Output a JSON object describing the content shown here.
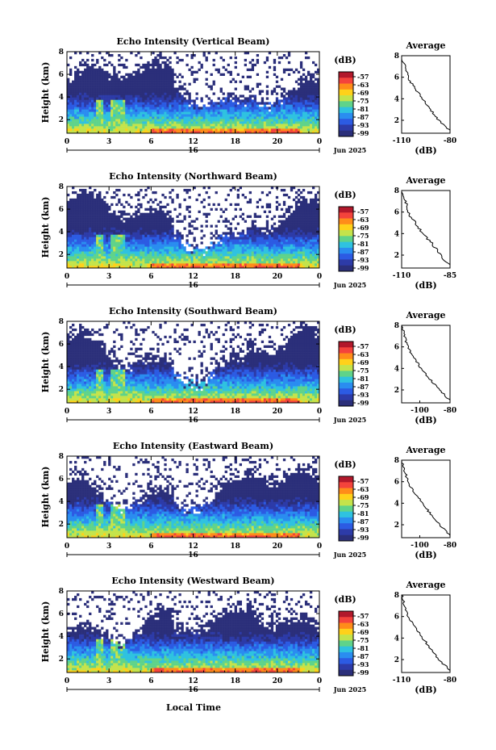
{
  "figure": {
    "xlabel": "Local Time",
    "day_label": "16",
    "month_label": "Jun 2025",
    "colorbar_unit": "(dB)",
    "colorbar_ticks": [
      "-57",
      "-63",
      "-69",
      "-75",
      "-81",
      "-87",
      "-93",
      "-99"
    ],
    "colorbar_colors": [
      "#b2182b",
      "#f4433c",
      "#ff8c1a",
      "#ffd11a",
      "#c4e34b",
      "#5fd38a",
      "#2fc2e0",
      "#2a8df0",
      "#2c5be3",
      "#2d3ba8",
      "#2b2f7a"
    ],
    "average_title": "Average",
    "average_xlabel": "(dB)"
  },
  "chart_data": [
    {
      "type": "heatmap",
      "title": "Echo Intensity (Vertical Beam)",
      "ylabel": "Height (km)",
      "x_ticks": [
        "0",
        "3",
        "6",
        "12",
        "18",
        "20",
        "0"
      ],
      "y_ticks": [
        "2",
        "4",
        "6",
        "8"
      ],
      "xlim_hours": [
        0,
        24
      ],
      "ylim_km": [
        0.8,
        8
      ],
      "color_range_db": [
        -99,
        -57
      ],
      "average_profile": {
        "x_ticks": [
          "-110",
          "-80"
        ],
        "y_ticks": [
          "2",
          "4",
          "6",
          "8"
        ],
        "xlim": [
          -110,
          -80
        ],
        "heights_km": [
          8,
          7,
          6,
          5,
          4,
          3,
          2,
          1
        ],
        "values_db": [
          -110,
          -108,
          -106,
          -102,
          -97,
          -92,
          -87,
          -80
        ]
      }
    },
    {
      "type": "heatmap",
      "title": "Echo Intensity (Northward Beam)",
      "ylabel": "Height (km)",
      "x_ticks": [
        "0",
        "3",
        "6",
        "12",
        "18",
        "20",
        "0"
      ],
      "y_ticks": [
        "2",
        "4",
        "6",
        "8"
      ],
      "xlim_hours": [
        0,
        24
      ],
      "ylim_km": [
        0.8,
        8
      ],
      "color_range_db": [
        -99,
        -57
      ],
      "average_profile": {
        "x_ticks": [
          "-110",
          "-85"
        ],
        "y_ticks": [
          "2",
          "4",
          "6",
          "8"
        ],
        "xlim": [
          -110,
          -85
        ],
        "heights_km": [
          8,
          7,
          6,
          5,
          4,
          3,
          2,
          1
        ],
        "values_db": [
          -110,
          -108,
          -107,
          -103,
          -99,
          -94,
          -90,
          -85
        ]
      }
    },
    {
      "type": "heatmap",
      "title": "Echo Intensity (Southward Beam)",
      "ylabel": "Height (km)",
      "x_ticks": [
        "0",
        "3",
        "6",
        "12",
        "18",
        "20",
        "0"
      ],
      "y_ticks": [
        "2",
        "4",
        "6",
        "8"
      ],
      "xlim_hours": [
        0,
        24
      ],
      "ylim_km": [
        0.8,
        8
      ],
      "color_range_db": [
        -99,
        -57
      ],
      "average_profile": {
        "x_ticks": [
          "-100",
          "-80"
        ],
        "y_ticks": [
          "2",
          "4",
          "6",
          "8"
        ],
        "xlim": [
          -112,
          -80
        ],
        "heights_km": [
          8,
          7,
          6,
          5,
          4,
          3,
          2,
          1
        ],
        "values_db": [
          -112,
          -110,
          -108,
          -104,
          -99,
          -93,
          -87,
          -80
        ]
      }
    },
    {
      "type": "heatmap",
      "title": "Echo Intensity (Eastward Beam)",
      "ylabel": "Height (km)",
      "x_ticks": [
        "0",
        "3",
        "6",
        "12",
        "18",
        "20",
        "0"
      ],
      "y_ticks": [
        "2",
        "4",
        "6",
        "8"
      ],
      "xlim_hours": [
        0,
        24
      ],
      "ylim_km": [
        0.8,
        8
      ],
      "color_range_db": [
        -99,
        -57
      ],
      "average_profile": {
        "x_ticks": [
          "-100",
          "-80"
        ],
        "y_ticks": [
          "2",
          "4",
          "6",
          "8"
        ],
        "xlim": [
          -112,
          -80
        ],
        "heights_km": [
          8,
          7,
          6,
          5,
          4,
          3,
          2,
          1
        ],
        "values_db": [
          -112,
          -110,
          -108,
          -104,
          -98,
          -93,
          -87,
          -80
        ]
      }
    },
    {
      "type": "heatmap",
      "title": "Echo Intensity (Westward Beam)",
      "ylabel": "Height (km)",
      "x_ticks": [
        "0",
        "3",
        "6",
        "12",
        "18",
        "20",
        "0"
      ],
      "y_ticks": [
        "2",
        "4",
        "6",
        "8"
      ],
      "xlim_hours": [
        0,
        24
      ],
      "ylim_km": [
        0.8,
        8
      ],
      "color_range_db": [
        -99,
        -57
      ],
      "average_profile": {
        "x_ticks": [
          "-110",
          "-80"
        ],
        "y_ticks": [
          "2",
          "4",
          "6",
          "8"
        ],
        "xlim": [
          -110,
          -80
        ],
        "heights_km": [
          8,
          7,
          6,
          5,
          4,
          3,
          2,
          1
        ],
        "values_db": [
          -110,
          -108,
          -106,
          -102,
          -97,
          -92,
          -87,
          -80
        ]
      }
    }
  ]
}
